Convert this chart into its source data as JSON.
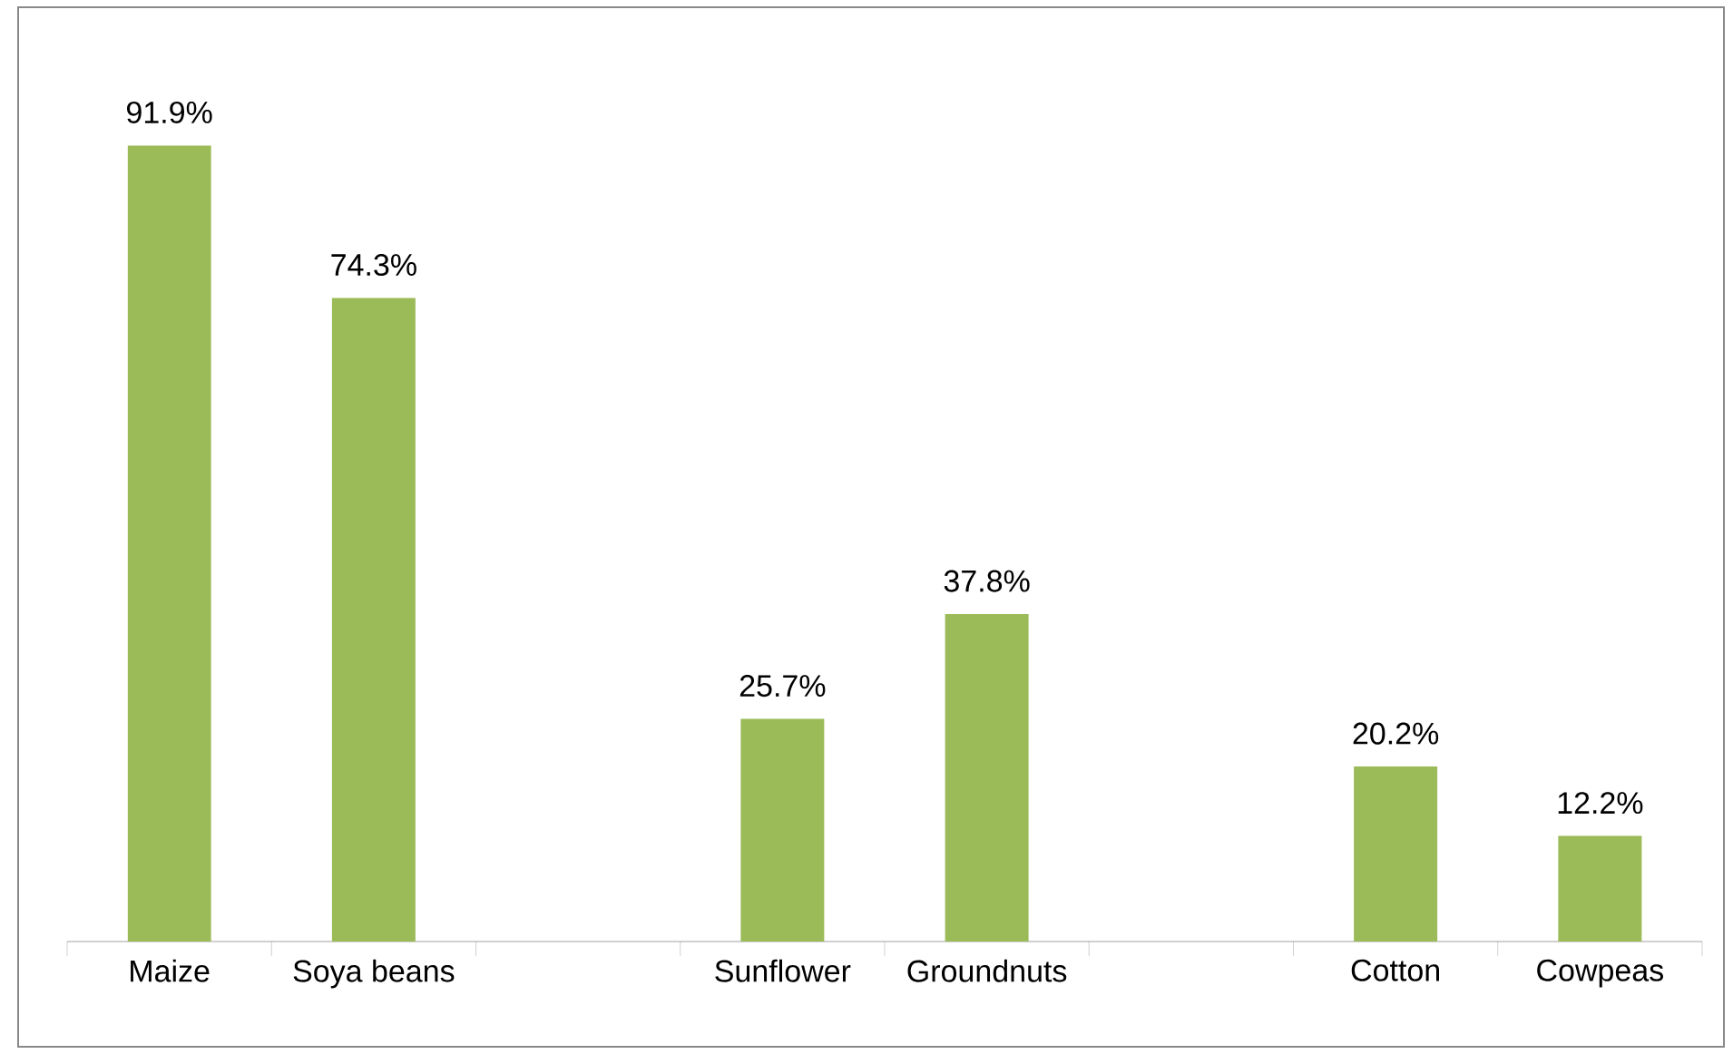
{
  "chart_data": {
    "type": "bar",
    "categories": [
      "Maize",
      "Soya beans",
      null,
      "Sunflower",
      "Groundnuts",
      null,
      "Cotton",
      "Cowpeas"
    ],
    "values": [
      91.9,
      74.3,
      null,
      25.7,
      37.8,
      null,
      20.2,
      12.2
    ],
    "value_labels": [
      "91.9%",
      "74.3%",
      null,
      "25.7%",
      "37.8%",
      null,
      "20.2%",
      "12.2%"
    ],
    "color": "#9bbb59"
  }
}
